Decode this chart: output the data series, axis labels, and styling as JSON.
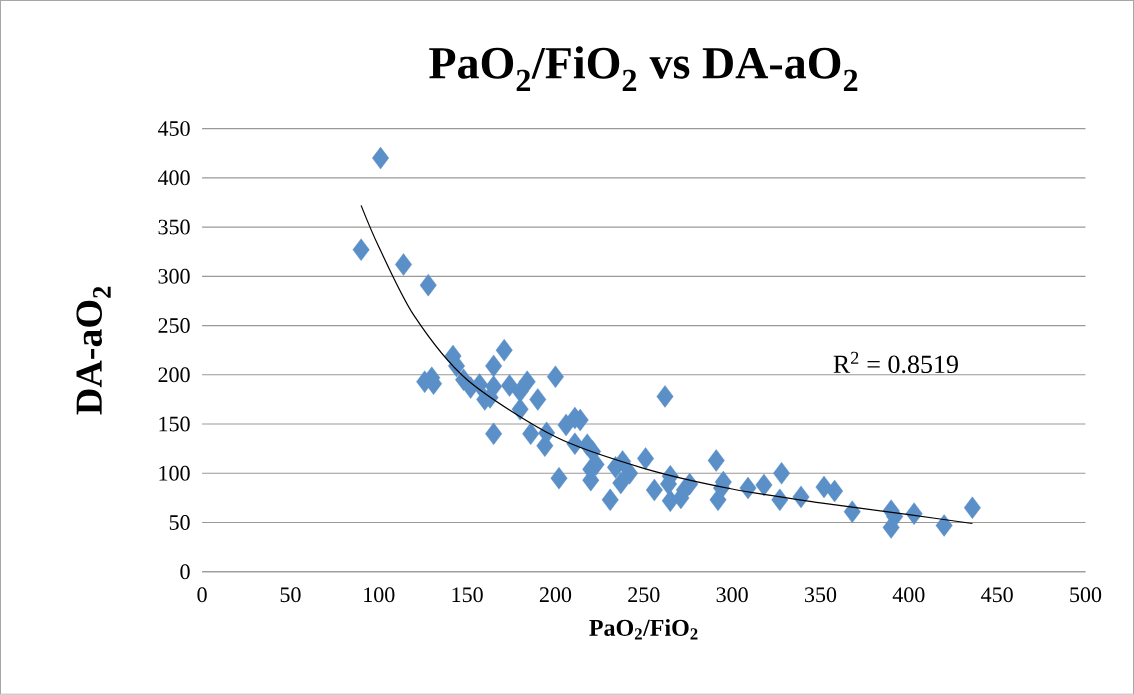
{
  "chart_data": {
    "type": "scatter",
    "title": "PaO$_{2}$/FiO$_{2}$ vs DA-aO$_{2}$",
    "xlabel": "PaO$_{2}$/FiO$_{2}$",
    "ylabel": "DA-aO$_{2}$",
    "xlim": [
      0,
      500
    ],
    "xticks": [
      0,
      50,
      100,
      150,
      200,
      250,
      300,
      350,
      400,
      450,
      500
    ],
    "ylim": [
      0,
      450
    ],
    "yticks": [
      0,
      50,
      100,
      150,
      200,
      250,
      300,
      350,
      400,
      450
    ],
    "grid": "y",
    "marker": "diamond",
    "annotations": [
      "R$^{2}$ = 0.8519"
    ],
    "series": [
      {
        "color": "#5b8fc7",
        "x": [
          90,
          101,
          114,
          128,
          126,
          130,
          131,
          142,
          144,
          148,
          152,
          157,
          160,
          165,
          165,
          163,
          165,
          171,
          174,
          180,
          180,
          184,
          186,
          190,
          194,
          195,
          200,
          202,
          206,
          211,
          214,
          211,
          218,
          220,
          221,
          220,
          223,
          231,
          234,
          237,
          238,
          242,
          251,
          256,
          262,
          264,
          265,
          265,
          271,
          273,
          276,
          291,
          292,
          294,
          295,
          309,
          318,
          328,
          327,
          339,
          352,
          358,
          368,
          390,
          390,
          392,
          403,
          420,
          436
        ],
        "values": [
          327,
          420,
          312,
          291,
          193,
          197,
          191,
          219,
          209,
          195,
          187,
          190,
          175,
          209,
          188,
          177,
          140,
          225,
          189,
          183,
          165,
          193,
          140,
          175,
          128,
          141,
          198,
          95,
          149,
          130,
          154,
          156,
          129,
          104,
          122,
          93,
          109,
          73,
          106,
          90,
          112,
          100,
          115,
          83,
          178,
          89,
          97,
          72,
          75,
          83,
          89,
          113,
          73,
          85,
          91,
          85,
          88,
          100,
          73,
          76,
          86,
          82,
          61,
          62,
          45,
          56,
          59,
          47,
          65
        ]
      },
      {
        "type": "line",
        "color": "#000000",
        "marker": "none",
        "x": [
          90,
          100,
          120,
          150,
          200,
          250,
          300,
          350,
          400,
          436
        ],
        "values": [
          372,
          330,
          260,
          195,
          137,
          105,
          84,
          70,
          58,
          49
        ]
      }
    ]
  }
}
